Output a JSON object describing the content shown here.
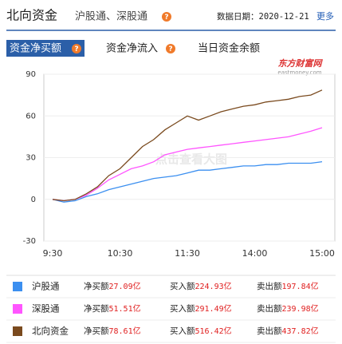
{
  "header": {
    "title": "北向资金",
    "subtitle": "沪股通、深股通",
    "help_icon": "?",
    "date_label": "数据日期：2020-12-21",
    "more": "更多"
  },
  "tabs": [
    "资金净买额",
    "资金净流入",
    "当日资金余额"
  ],
  "chart_data": {
    "type": "line",
    "categories": [
      "9:30",
      null,
      null,
      null,
      null,
      null,
      "10:30",
      null,
      null,
      null,
      null,
      null,
      "11:30",
      null,
      null,
      null,
      null,
      null,
      "14:00",
      null,
      null,
      null,
      null,
      null,
      "15:00"
    ],
    "series": [
      {
        "name": "沪股通",
        "color": "#3b8ff0",
        "values": [
          0,
          -2,
          -1,
          2,
          4,
          7,
          9,
          11,
          13,
          15,
          16,
          17,
          19,
          21,
          21,
          22,
          23,
          24,
          24,
          25,
          25,
          26,
          26,
          26,
          27.09
        ]
      },
      {
        "name": "深股通",
        "color": "#ff55ff",
        "values": [
          0,
          -1,
          0,
          3,
          8,
          14,
          18,
          22,
          24,
          27,
          32,
          34,
          36,
          37,
          38,
          39,
          40,
          41,
          42,
          43,
          44,
          45,
          47,
          49,
          51.51
        ]
      },
      {
        "name": "北向资金",
        "color": "#7a4a1e",
        "values": [
          0,
          -1,
          0,
          4,
          9,
          17,
          22,
          30,
          38,
          43,
          50,
          55,
          60,
          57,
          60,
          63,
          65,
          67,
          68,
          70,
          71,
          72,
          74,
          75,
          78.61
        ]
      }
    ],
    "ylim": [
      -30,
      90
    ],
    "yticks": [
      -30,
      0,
      30,
      60,
      90
    ],
    "grid": true,
    "watermark": "点击查看大图",
    "logo": "东方财富网",
    "logo_sub": "eastmoney.com"
  },
  "legend_table": {
    "rows": [
      {
        "net_buy_label": "净买额",
        "net_buy": "27.09亿",
        "buy_label": "买入额",
        "buy": "224.93亿",
        "sell_label": "卖出额",
        "sell": "197.84亿"
      },
      {
        "net_buy_label": "净买额",
        "net_buy": "51.51亿",
        "buy_label": "买入额",
        "buy": "291.49亿",
        "sell_label": "卖出额",
        "sell": "239.98亿"
      },
      {
        "net_buy_label": "净买额",
        "net_buy": "78.61亿",
        "buy_label": "买入额",
        "buy": "516.42亿",
        "sell_label": "卖出额",
        "sell": "437.82亿"
      }
    ]
  }
}
